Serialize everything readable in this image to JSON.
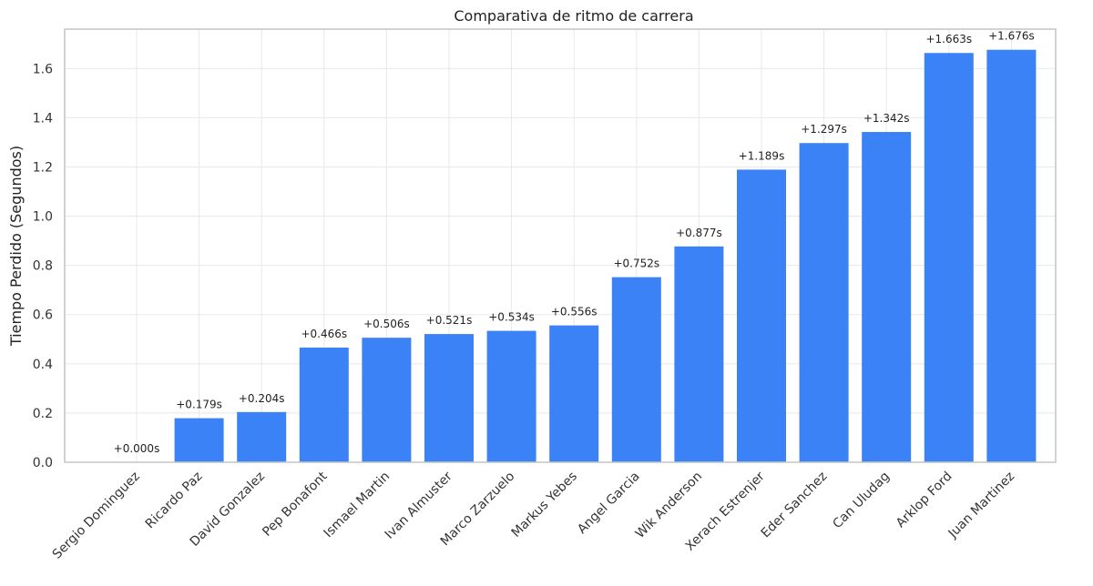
{
  "chart_data": {
    "type": "bar",
    "title": "Comparativa de ritmo de carrera",
    "xlabel": "",
    "ylabel": "Tiempo Perdido (Segundos)",
    "ylim": [
      0,
      1.76
    ],
    "yticks": [
      "0.0",
      "0.2",
      "0.4",
      "0.6",
      "0.8",
      "1.0",
      "1.2",
      "1.4",
      "1.6"
    ],
    "grid": true,
    "bar_color": "#3b82f6",
    "categories": [
      "Sergio Dominguez",
      "Ricardo Paz",
      "David Gonzalez",
      "Pep Bonafont",
      "Ismael Martin",
      "Ivan Almuster",
      "Marco Zarzuelo",
      "Markus Yebes",
      "Angel Garcia",
      "Wik Anderson",
      "Xerach Estrenjer",
      "Eder Sanchez",
      "Can Uludag",
      "Arklop Ford",
      "Juan Martinez"
    ],
    "values": [
      0.0,
      0.179,
      0.204,
      0.466,
      0.506,
      0.521,
      0.534,
      0.556,
      0.752,
      0.877,
      1.189,
      1.297,
      1.342,
      1.663,
      1.676
    ],
    "data_labels": [
      "+0.000s",
      "+0.179s",
      "+0.204s",
      "+0.466s",
      "+0.506s",
      "+0.521s",
      "+0.534s",
      "+0.556s",
      "+0.752s",
      "+0.877s",
      "+1.189s",
      "+1.297s",
      "+1.342s",
      "+1.663s",
      "+1.676s"
    ]
  }
}
